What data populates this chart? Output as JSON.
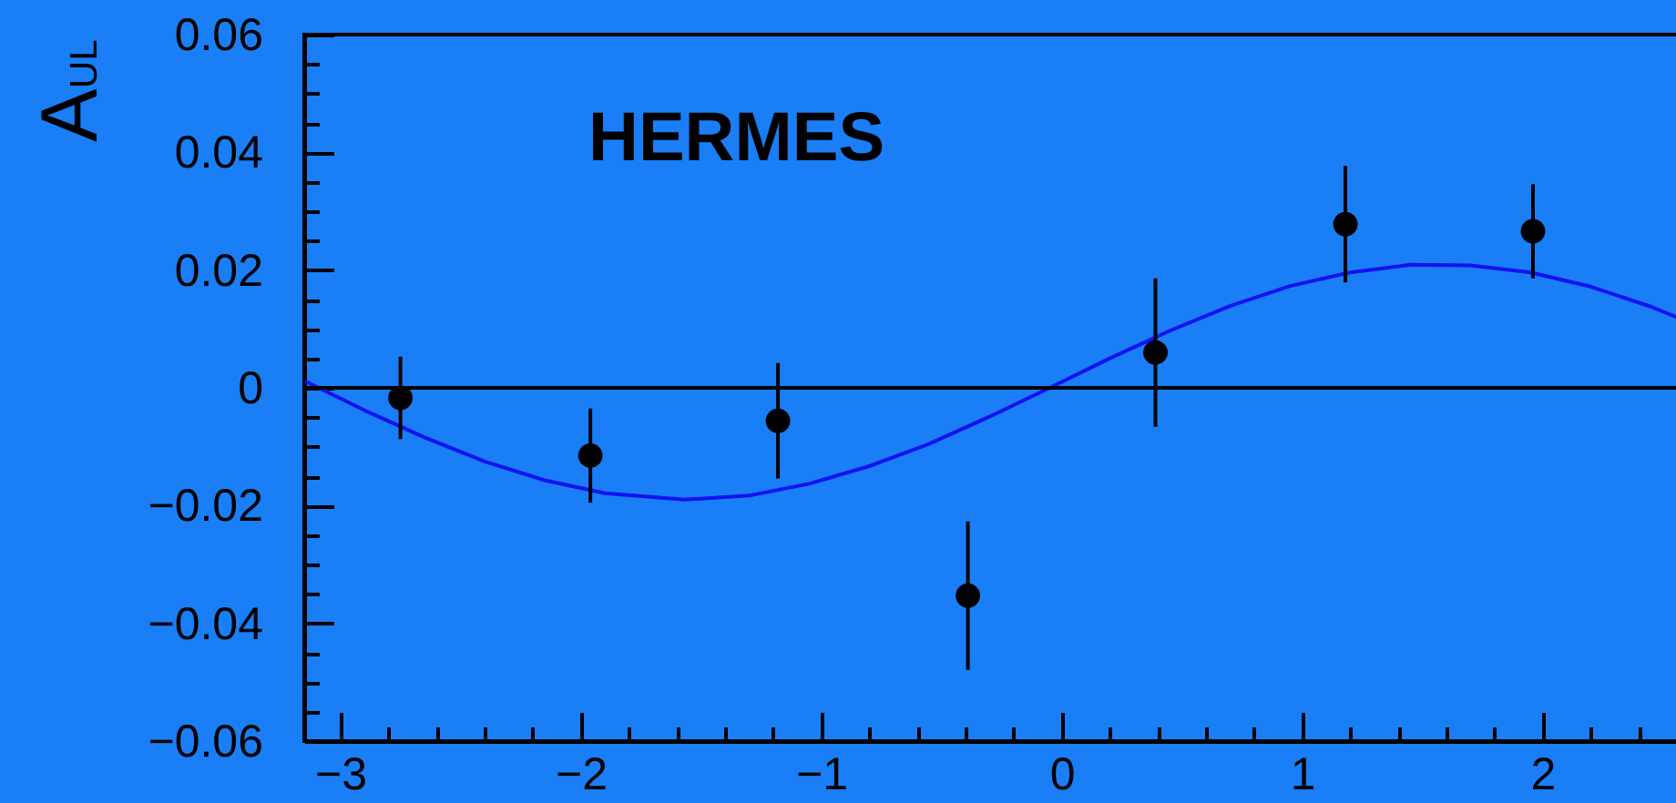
{
  "chart_data": {
    "type": "scatter",
    "ylabel": "A$_{UL}$",
    "annotations": [
      "HERMES"
    ],
    "xlim": [
      -3.15,
      2.57
    ],
    "xticks": [
      -3,
      {
        "value": -2.8,
        "label": null
      },
      {
        "value": -2.6,
        "label": null
      },
      {
        "value": -2.4,
        "label": null
      },
      {
        "value": -2.2,
        "label": null
      },
      -2,
      {
        "value": -1.8,
        "label": null
      },
      {
        "value": -1.6,
        "label": null
      },
      {
        "value": -1.4,
        "label": null
      },
      {
        "value": -1.2,
        "label": null
      },
      -1,
      {
        "value": -0.8,
        "label": null
      },
      {
        "value": -0.6,
        "label": null
      },
      {
        "value": -0.4,
        "label": null
      },
      {
        "value": -0.2,
        "label": null
      },
      0,
      {
        "value": 0.2,
        "label": null
      },
      {
        "value": 0.4,
        "label": null
      },
      {
        "value": 0.6,
        "label": null
      },
      {
        "value": 0.8,
        "label": null
      },
      1,
      {
        "value": 1.2,
        "label": null
      },
      {
        "value": 1.4,
        "label": null
      },
      {
        "value": 1.6,
        "label": null
      },
      {
        "value": 1.8,
        "label": null
      },
      2,
      {
        "value": 2.2,
        "label": null
      },
      {
        "value": 2.4,
        "label": null
      }
    ],
    "ylim": [
      -0.06,
      0.06
    ],
    "yticks": [
      -0.06,
      {
        "value": -0.055,
        "label": null
      },
      {
        "value": -0.05,
        "label": null
      },
      {
        "value": -0.045,
        "label": null
      },
      -0.04,
      {
        "value": -0.035,
        "label": null
      },
      {
        "value": -0.03,
        "label": null
      },
      {
        "value": -0.025,
        "label": null
      },
      -0.02,
      {
        "value": -0.015,
        "label": null
      },
      {
        "value": -0.01,
        "label": null
      },
      {
        "value": -0.005,
        "label": null
      },
      0,
      {
        "value": 0.005,
        "label": null
      },
      {
        "value": 0.01,
        "label": null
      },
      {
        "value": 0.015,
        "label": null
      },
      0.02,
      {
        "value": 0.025,
        "label": null
      },
      {
        "value": 0.03,
        "label": null
      },
      {
        "value": 0.035,
        "label": null
      },
      0.04,
      {
        "value": 0.045,
        "label": null
      },
      {
        "value": 0.05,
        "label": null
      },
      {
        "value": 0.055,
        "label": null
      },
      0.06
    ],
    "ref_lines": [
      {
        "axis": "y",
        "value": 0,
        "color": "#000000"
      }
    ],
    "series": [
      {
        "type": "line",
        "color": "#1212f0",
        "x": [
          -3.14,
          -2.9,
          -2.65,
          -2.4,
          -2.15,
          -1.9,
          -1.57,
          -1.3,
          -1.05,
          -0.8,
          -0.55,
          -0.3,
          -0.05,
          0.2,
          0.45,
          0.7,
          0.95,
          1.2,
          1.45,
          1.7,
          1.95,
          2.2,
          2.45,
          2.57
        ],
        "values": [
          0.001,
          -0.0038,
          -0.0084,
          -0.0125,
          -0.0157,
          -0.0179,
          -0.019,
          -0.0183,
          -0.0163,
          -0.0133,
          -0.0095,
          -0.0049,
          0.0,
          0.005,
          0.0097,
          0.0139,
          0.0173,
          0.0196,
          0.0209,
          0.0208,
          0.0196,
          0.0172,
          0.0138,
          0.0118
        ]
      },
      {
        "color": "#000000",
        "marker": "circle",
        "x": [
          -2.75,
          -1.96,
          -1.18,
          -0.39,
          0.39,
          1.18,
          1.96
        ],
        "values": [
          -0.0017,
          -0.0115,
          -0.0056,
          -0.0353,
          0.006,
          0.0278,
          0.0266
        ],
        "errors": [
          0.007,
          0.008,
          0.0098,
          0.0126,
          0.0126,
          0.0099,
          0.008
        ]
      }
    ]
  }
}
